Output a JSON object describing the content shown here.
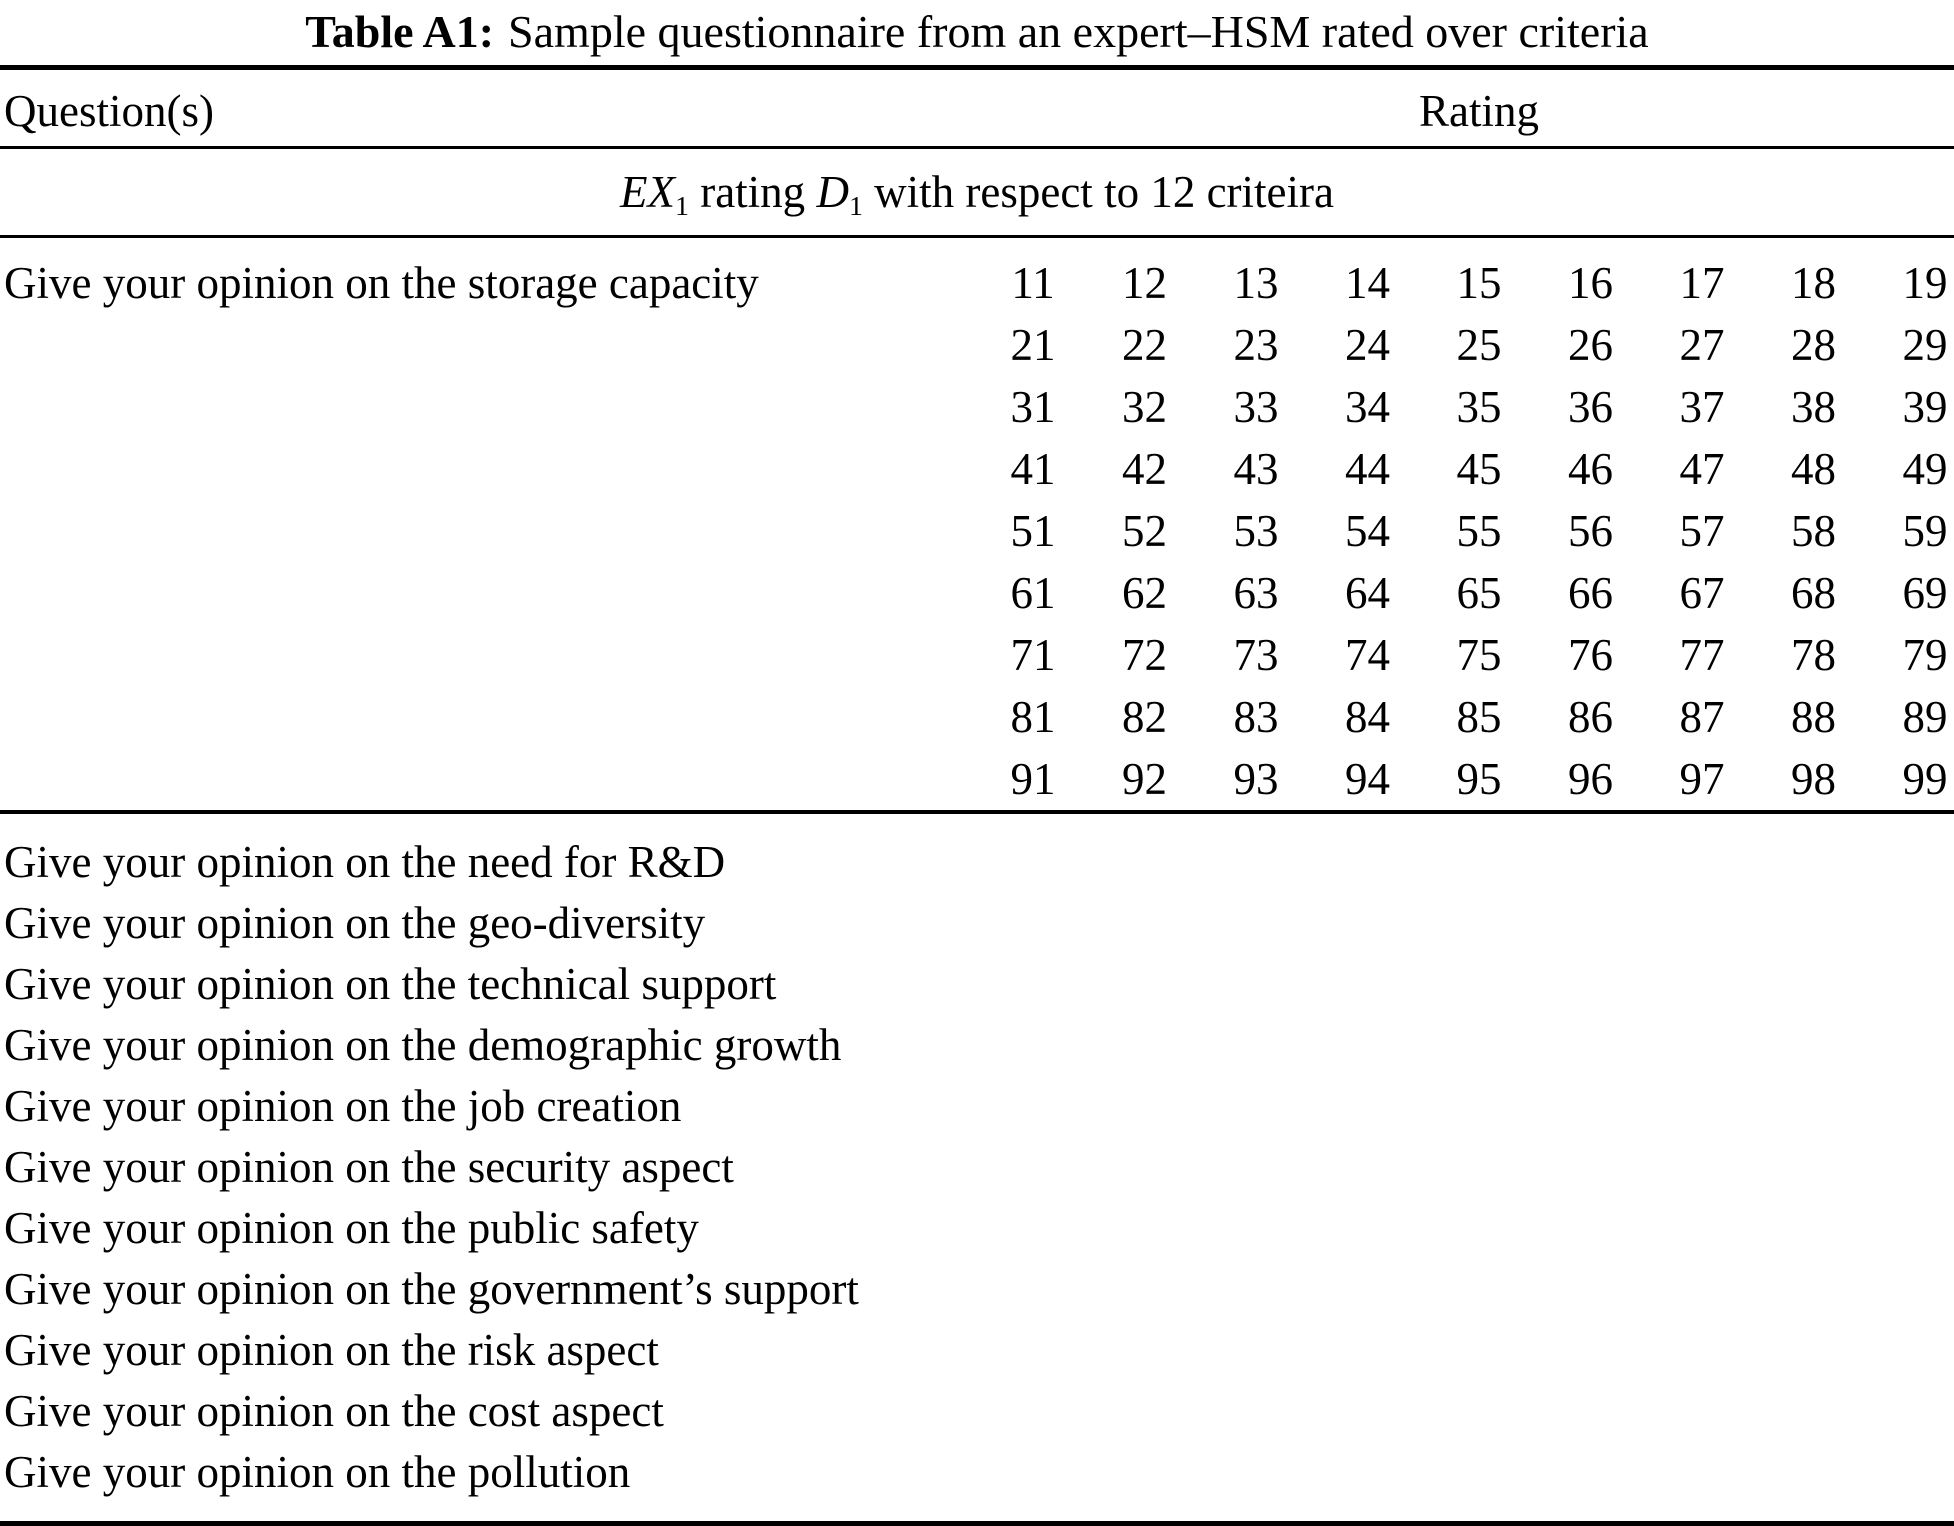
{
  "caption": {
    "label": "Table A1:",
    "text": "Sample questionnaire from an expert–HSM rated over criteria"
  },
  "table": {
    "columns": {
      "question": "Question(s)",
      "rating": "Rating"
    },
    "section_header": {
      "ex": "EX",
      "ex_sub": "1",
      "mid": " rating ",
      "d": "D",
      "d_sub": "1",
      "rest": " with respect to 12 criteira"
    },
    "first_row": {
      "question": "Give your opinion on the storage capacity",
      "rating_grid": [
        [
          "11",
          "12",
          "13",
          "14",
          "15",
          "16",
          "17",
          "18",
          "19"
        ],
        [
          "21",
          "22",
          "23",
          "24",
          "25",
          "26",
          "27",
          "28",
          "29"
        ],
        [
          "31",
          "32",
          "33",
          "34",
          "35",
          "36",
          "37",
          "38",
          "39"
        ],
        [
          "41",
          "42",
          "43",
          "44",
          "45",
          "46",
          "47",
          "48",
          "49"
        ],
        [
          "51",
          "52",
          "53",
          "54",
          "55",
          "56",
          "57",
          "58",
          "59"
        ],
        [
          "61",
          "62",
          "63",
          "64",
          "65",
          "66",
          "67",
          "68",
          "69"
        ],
        [
          "71",
          "72",
          "73",
          "74",
          "75",
          "76",
          "77",
          "78",
          "79"
        ],
        [
          "81",
          "82",
          "83",
          "84",
          "85",
          "86",
          "87",
          "88",
          "89"
        ],
        [
          "91",
          "92",
          "93",
          "94",
          "95",
          "96",
          "97",
          "98",
          "99"
        ]
      ]
    },
    "questions": [
      "Give your opinion on the need for R&D",
      "Give your opinion on the geo-diversity",
      "Give your opinion on the technical support",
      "Give your opinion on the demographic growth",
      "Give your opinion on the job creation",
      "Give your opinion on the security aspect",
      "Give your opinion on the public safety",
      "Give your opinion on the government’s support",
      "Give your opinion on the risk aspect",
      "Give your opinion on the cost aspect",
      "Give your opinion on the pollution"
    ]
  },
  "colors": {
    "background": "#ffffff",
    "text": "#000000",
    "rule": "#000000"
  }
}
